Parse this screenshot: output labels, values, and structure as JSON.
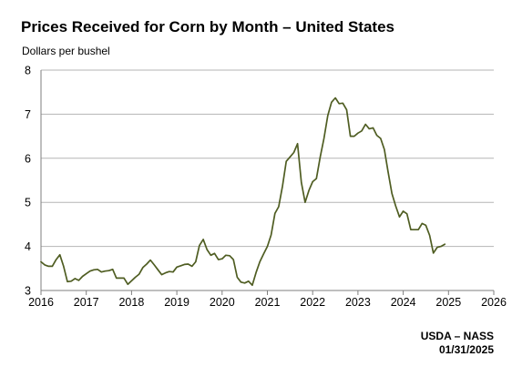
{
  "chart_data": {
    "type": "line",
    "title": "Prices Received for Corn by Month – United States",
    "ylabel": "Dollars per bushel",
    "xlabel": "",
    "xlim": [
      2016,
      2026
    ],
    "ylim": [
      3,
      8
    ],
    "x_ticks": [
      "2016",
      "2017",
      "2018",
      "2019",
      "2020",
      "2021",
      "2022",
      "2023",
      "2024",
      "2025",
      "2026"
    ],
    "y_ticks": [
      "3",
      "4",
      "5",
      "6",
      "7",
      "8"
    ],
    "grid": true,
    "line_color": "#4f5d22",
    "series": [
      {
        "name": "",
        "x": [
          2016.0,
          2016.083,
          2016.167,
          2016.25,
          2016.333,
          2016.417,
          2016.5,
          2016.583,
          2016.667,
          2016.75,
          2016.833,
          2016.917,
          2017.0,
          2017.083,
          2017.167,
          2017.25,
          2017.333,
          2017.417,
          2017.5,
          2017.583,
          2017.667,
          2017.75,
          2017.833,
          2017.917,
          2018.0,
          2018.083,
          2018.167,
          2018.25,
          2018.333,
          2018.417,
          2018.5,
          2018.583,
          2018.667,
          2018.75,
          2018.833,
          2018.917,
          2019.0,
          2019.083,
          2019.167,
          2019.25,
          2019.333,
          2019.417,
          2019.5,
          2019.583,
          2019.667,
          2019.75,
          2019.833,
          2019.917,
          2020.0,
          2020.083,
          2020.167,
          2020.25,
          2020.333,
          2020.417,
          2020.5,
          2020.583,
          2020.667,
          2020.75,
          2020.833,
          2020.917,
          2021.0,
          2021.083,
          2021.167,
          2021.25,
          2021.333,
          2021.417,
          2021.5,
          2021.583,
          2021.667,
          2021.75,
          2021.833,
          2021.917,
          2022.0,
          2022.083,
          2022.167,
          2022.25,
          2022.333,
          2022.417,
          2022.5,
          2022.583,
          2022.667,
          2022.75,
          2022.833,
          2022.917,
          2023.0,
          2023.083,
          2023.167,
          2023.25,
          2023.333,
          2023.417,
          2023.5,
          2023.583,
          2023.667,
          2023.75,
          2023.833,
          2023.917,
          2024.0,
          2024.083,
          2024.167,
          2024.25,
          2024.333,
          2024.417,
          2024.5,
          2024.583,
          2024.667,
          2024.75,
          2024.833,
          2024.917
        ],
        "values": [
          3.65,
          3.58,
          3.55,
          3.55,
          3.7,
          3.81,
          3.55,
          3.2,
          3.21,
          3.27,
          3.23,
          3.32,
          3.38,
          3.44,
          3.47,
          3.48,
          3.42,
          3.44,
          3.45,
          3.48,
          3.28,
          3.28,
          3.28,
          3.14,
          3.22,
          3.3,
          3.37,
          3.52,
          3.6,
          3.69,
          3.58,
          3.47,
          3.36,
          3.4,
          3.43,
          3.42,
          3.53,
          3.56,
          3.59,
          3.6,
          3.55,
          3.65,
          4.02,
          4.16,
          3.93,
          3.8,
          3.84,
          3.7,
          3.72,
          3.8,
          3.79,
          3.7,
          3.3,
          3.19,
          3.17,
          3.21,
          3.12,
          3.41,
          3.65,
          3.83,
          4.0,
          4.26,
          4.75,
          4.9,
          5.37,
          5.93,
          6.03,
          6.13,
          6.33,
          5.45,
          5.0,
          5.27,
          5.47,
          5.54,
          6.03,
          6.45,
          6.97,
          7.27,
          7.37,
          7.24,
          7.25,
          7.1,
          6.5,
          6.5,
          6.57,
          6.62,
          6.77,
          6.67,
          6.69,
          6.52,
          6.45,
          6.2,
          5.69,
          5.2,
          4.92,
          4.67,
          4.8,
          4.74,
          4.38,
          4.38,
          4.38,
          4.52,
          4.48,
          4.25,
          3.85,
          3.98,
          4.0,
          4.05
        ]
      }
    ]
  },
  "footer": {
    "source": "USDA – NASS",
    "date": "01/31/2025"
  }
}
